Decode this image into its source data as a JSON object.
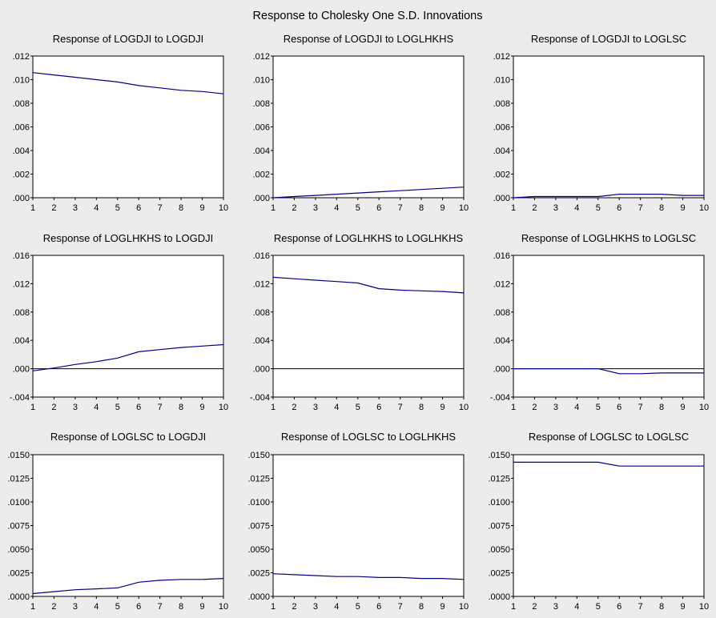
{
  "figure": {
    "title": "Response to Cholesky One S.D. Innovations"
  },
  "colors": {
    "line": "#000080",
    "axis": "#000000",
    "background": "#ececec",
    "plot_bg": "#ffffff"
  },
  "chart_data": [
    {
      "type": "line",
      "title": "Response of LOGDJI to LOGDJI",
      "x": [
        1,
        2,
        3,
        4,
        5,
        6,
        7,
        8,
        9,
        10
      ],
      "values": [
        0.0106,
        0.0104,
        0.0102,
        0.01,
        0.0098,
        0.0095,
        0.0093,
        0.0091,
        0.009,
        0.0088
      ],
      "ylim": [
        0,
        0.012
      ],
      "yticks": [
        ".000",
        ".002",
        ".004",
        ".006",
        ".008",
        ".010",
        ".012"
      ],
      "ytick_values": [
        0,
        0.002,
        0.004,
        0.006,
        0.008,
        0.01,
        0.012
      ],
      "xticks": [
        "1",
        "2",
        "3",
        "4",
        "5",
        "6",
        "7",
        "8",
        "9",
        "10"
      ],
      "zero_line": false
    },
    {
      "type": "line",
      "title": "Response of LOGDJI to LOGLHKHS",
      "x": [
        1,
        2,
        3,
        4,
        5,
        6,
        7,
        8,
        9,
        10
      ],
      "values": [
        0.0,
        0.0001,
        0.0002,
        0.0003,
        0.0004,
        0.0005,
        0.0006,
        0.0007,
        0.0008,
        0.0009
      ],
      "ylim": [
        0,
        0.012
      ],
      "yticks": [
        ".000",
        ".002",
        ".004",
        ".006",
        ".008",
        ".010",
        ".012"
      ],
      "ytick_values": [
        0,
        0.002,
        0.004,
        0.006,
        0.008,
        0.01,
        0.012
      ],
      "xticks": [
        "1",
        "2",
        "3",
        "4",
        "5",
        "6",
        "7",
        "8",
        "9",
        "10"
      ],
      "zero_line": false
    },
    {
      "type": "line",
      "title": "Response of LOGDJI to LOGLSC",
      "x": [
        1,
        2,
        3,
        4,
        5,
        6,
        7,
        8,
        9,
        10
      ],
      "values": [
        0.0,
        0.0001,
        0.0001,
        0.0001,
        0.0001,
        0.0003,
        0.0003,
        0.0003,
        0.0002,
        0.0002
      ],
      "ylim": [
        0,
        0.012
      ],
      "yticks": [
        ".000",
        ".002",
        ".004",
        ".006",
        ".008",
        ".010",
        ".012"
      ],
      "ytick_values": [
        0,
        0.002,
        0.004,
        0.006,
        0.008,
        0.01,
        0.012
      ],
      "xticks": [
        "1",
        "2",
        "3",
        "4",
        "5",
        "6",
        "7",
        "8",
        "9",
        "10"
      ],
      "zero_line": false
    },
    {
      "type": "line",
      "title": "Response of LOGLHKHS to LOGDJI",
      "x": [
        1,
        2,
        3,
        4,
        5,
        6,
        7,
        8,
        9,
        10
      ],
      "values": [
        -0.0003,
        0.0001,
        0.0006,
        0.001,
        0.0015,
        0.0024,
        0.0027,
        0.003,
        0.0032,
        0.0034
      ],
      "ylim": [
        -0.004,
        0.016
      ],
      "yticks": [
        "-.004",
        ".000",
        ".004",
        ".008",
        ".012",
        ".016"
      ],
      "ytick_values": [
        -0.004,
        0,
        0.004,
        0.008,
        0.012,
        0.016
      ],
      "xticks": [
        "1",
        "2",
        "3",
        "4",
        "5",
        "6",
        "7",
        "8",
        "9",
        "10"
      ],
      "zero_line": true
    },
    {
      "type": "line",
      "title": "Response of LOGLHKHS to LOGLHKHS",
      "x": [
        1,
        2,
        3,
        4,
        5,
        6,
        7,
        8,
        9,
        10
      ],
      "values": [
        0.0129,
        0.0127,
        0.0125,
        0.0123,
        0.0121,
        0.0113,
        0.0111,
        0.011,
        0.0109,
        0.0107
      ],
      "ylim": [
        -0.004,
        0.016
      ],
      "yticks": [
        "-.004",
        ".000",
        ".004",
        ".008",
        ".012",
        ".016"
      ],
      "ytick_values": [
        -0.004,
        0,
        0.004,
        0.008,
        0.012,
        0.016
      ],
      "xticks": [
        "1",
        "2",
        "3",
        "4",
        "5",
        "6",
        "7",
        "8",
        "9",
        "10"
      ],
      "zero_line": true
    },
    {
      "type": "line",
      "title": "Response of LOGLHKHS to LOGLSC",
      "x": [
        1,
        2,
        3,
        4,
        5,
        6,
        7,
        8,
        9,
        10
      ],
      "values": [
        0.0,
        0.0,
        0.0,
        0.0,
        0.0,
        -0.0007,
        -0.0007,
        -0.0006,
        -0.0006,
        -0.0006
      ],
      "ylim": [
        -0.004,
        0.016
      ],
      "yticks": [
        "-.004",
        ".000",
        ".004",
        ".008",
        ".012",
        ".016"
      ],
      "ytick_values": [
        -0.004,
        0,
        0.004,
        0.008,
        0.012,
        0.016
      ],
      "xticks": [
        "1",
        "2",
        "3",
        "4",
        "5",
        "6",
        "7",
        "8",
        "9",
        "10"
      ],
      "zero_line": true
    },
    {
      "type": "line",
      "title": "Response of LOGLSC to LOGDJI",
      "x": [
        1,
        2,
        3,
        4,
        5,
        6,
        7,
        8,
        9,
        10
      ],
      "values": [
        0.0003,
        0.0005,
        0.0007,
        0.0008,
        0.0009,
        0.0015,
        0.0017,
        0.0018,
        0.0018,
        0.0019
      ],
      "ylim": [
        0,
        0.015
      ],
      "yticks": [
        ".0000",
        ".0025",
        ".0050",
        ".0075",
        ".0100",
        ".0125",
        ".0150"
      ],
      "ytick_values": [
        0,
        0.0025,
        0.005,
        0.0075,
        0.01,
        0.0125,
        0.015
      ],
      "xticks": [
        "1",
        "2",
        "3",
        "4",
        "5",
        "6",
        "7",
        "8",
        "9",
        "10"
      ],
      "zero_line": false
    },
    {
      "type": "line",
      "title": "Response of LOGLSC to LOGLHKHS",
      "x": [
        1,
        2,
        3,
        4,
        5,
        6,
        7,
        8,
        9,
        10
      ],
      "values": [
        0.0024,
        0.0023,
        0.0022,
        0.0021,
        0.0021,
        0.002,
        0.002,
        0.0019,
        0.0019,
        0.0018
      ],
      "ylim": [
        0,
        0.015
      ],
      "yticks": [
        ".0000",
        ".0025",
        ".0050",
        ".0075",
        ".0100",
        ".0125",
        ".0150"
      ],
      "ytick_values": [
        0,
        0.0025,
        0.005,
        0.0075,
        0.01,
        0.0125,
        0.015
      ],
      "xticks": [
        "1",
        "2",
        "3",
        "4",
        "5",
        "6",
        "7",
        "8",
        "9",
        "10"
      ],
      "zero_line": false
    },
    {
      "type": "line",
      "title": "Response of LOGLSC to LOGLSC",
      "x": [
        1,
        2,
        3,
        4,
        5,
        6,
        7,
        8,
        9,
        10
      ],
      "values": [
        0.0142,
        0.0142,
        0.0142,
        0.0142,
        0.0142,
        0.0138,
        0.0138,
        0.0138,
        0.0138,
        0.0138
      ],
      "ylim": [
        0,
        0.015
      ],
      "yticks": [
        ".0000",
        ".0025",
        ".0050",
        ".0075",
        ".0100",
        ".0125",
        ".0150"
      ],
      "ytick_values": [
        0,
        0.0025,
        0.005,
        0.0075,
        0.01,
        0.0125,
        0.015
      ],
      "xticks": [
        "1",
        "2",
        "3",
        "4",
        "5",
        "6",
        "7",
        "8",
        "9",
        "10"
      ],
      "zero_line": false
    }
  ]
}
